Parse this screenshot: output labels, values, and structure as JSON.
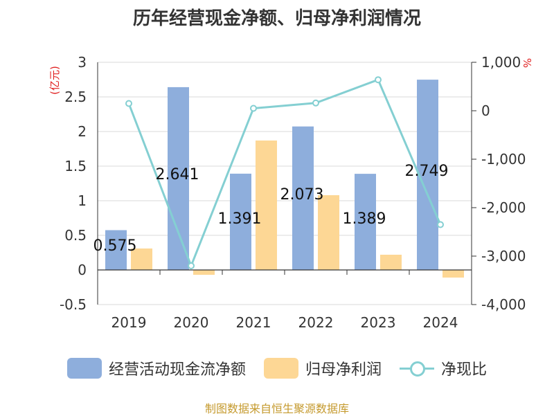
{
  "title": "历年经营现金净额、归母净利润情况",
  "y_left_unit": "(亿元)",
  "y_right_unit": "%",
  "source": "制图数据来自恒生聚源数据库",
  "colors": {
    "cash": "#8eaedc",
    "profit": "#fdd795",
    "ratio": "#84cfd2",
    "unit": "#e02020",
    "source": "#c59a2e"
  },
  "chart_data": {
    "type": "bar",
    "categories": [
      "2019",
      "2020",
      "2021",
      "2022",
      "2023",
      "2024"
    ],
    "series": [
      {
        "name": "经营活动现金流净额",
        "values": [
          0.575,
          2.641,
          1.391,
          2.073,
          1.389,
          2.749
        ],
        "axis": "left",
        "kind": "bar"
      },
      {
        "name": "归母净利润",
        "values": [
          0.31,
          -0.07,
          1.87,
          1.08,
          0.22,
          -0.11
        ],
        "axis": "left",
        "kind": "bar"
      },
      {
        "name": "净现比",
        "values": [
          150,
          -3200,
          50,
          160,
          640,
          -2350
        ],
        "axis": "right",
        "kind": "line"
      }
    ],
    "data_labels": [
      "0.575",
      "2.641",
      "1.391",
      "2.073",
      "1.389",
      "2.749"
    ],
    "y_left": {
      "min": -0.5,
      "max": 3,
      "ticks": [
        "-0.5",
        "0",
        "0.5",
        "1",
        "1.5",
        "2",
        "2.5",
        "3"
      ]
    },
    "y_right": {
      "min": -4000,
      "max": 1000,
      "ticks": [
        "-4,000",
        "-3,000",
        "-2,000",
        "-1,000",
        "0",
        "1,000"
      ]
    },
    "grid": true,
    "legend_position": "bottom"
  }
}
